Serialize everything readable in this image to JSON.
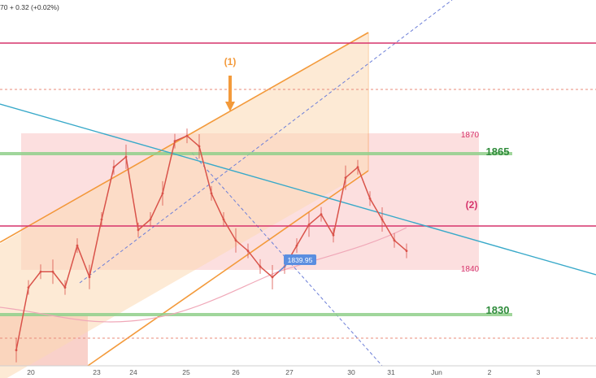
{
  "header": {
    "price_change": "70 + 0.32 (+0.02%)"
  },
  "colors": {
    "candle": "#d9534a",
    "band": "#f5a3a3",
    "channel": "#f39a3b",
    "support_green": "#8fcf8a",
    "level_line": "#d6336c",
    "trend_blue": "#38a9c9",
    "ma_line": "#f0a8b8",
    "callout": "#5b8ee0"
  },
  "annotations": {
    "wave1": "(1)",
    "wave2": "(2)",
    "level_1870": "1870",
    "level_1865": "1865",
    "level_1840": "1840",
    "level_1830": "1830",
    "low_callout": "1839.95"
  },
  "chart_data": {
    "type": "line",
    "title": "",
    "xlabel": "",
    "ylabel": "",
    "x_ticks": [
      "20",
      "23",
      "24",
      "25",
      "26",
      "27",
      "30",
      "31",
      "Jun",
      "2",
      "3"
    ],
    "ylim": [
      1823,
      1893
    ],
    "grid": false,
    "horizontal_levels": [
      {
        "name": "1870",
        "value": 1870
      },
      {
        "name": "1865",
        "value": 1865
      },
      {
        "name": "1840",
        "value": 1840
      },
      {
        "name": "1830",
        "value": 1830
      }
    ],
    "series": [
      {
        "values": [
          1826,
          1838,
          1841,
          1841,
          1838,
          1846,
          1840,
          1851,
          1861,
          1863,
          1849,
          1851,
          1856,
          1866,
          1867,
          1865,
          1856,
          1851,
          1847,
          1845,
          1842,
          1839.95,
          1842,
          1846,
          1850,
          1852,
          1848,
          1859,
          1861,
          1855,
          1851,
          1847,
          1845
        ]
      }
    ]
  }
}
